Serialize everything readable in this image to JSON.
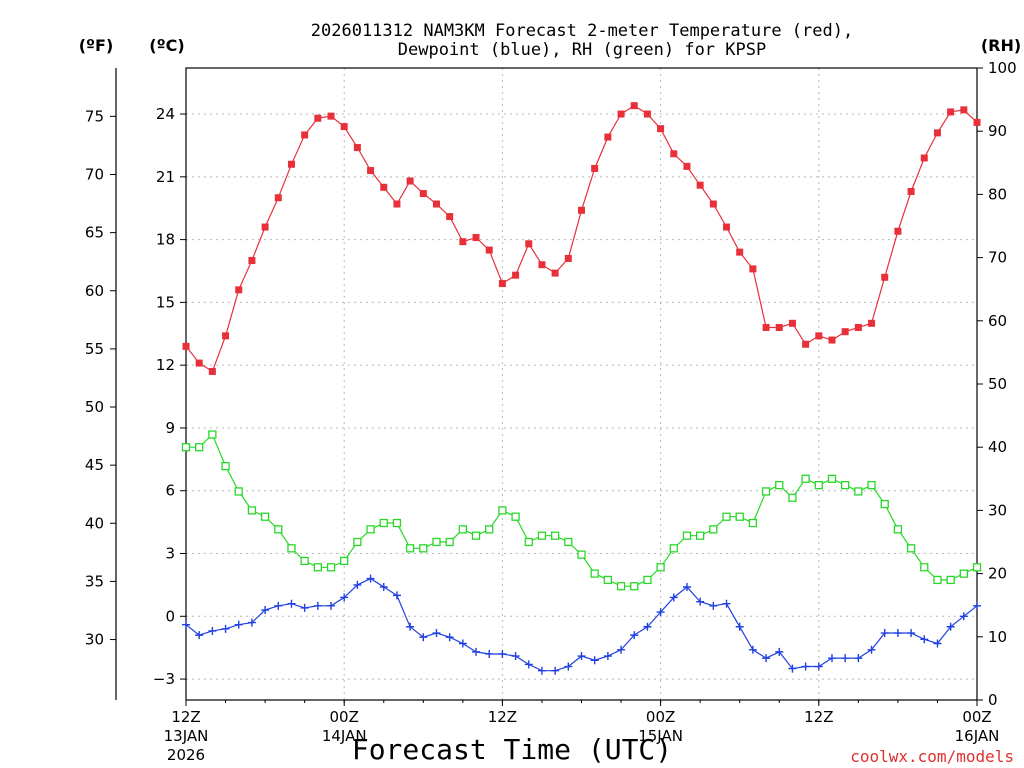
{
  "chart_data": {
    "type": "line",
    "title_line1": "2026011312 NAM3KM Forecast 2-meter Temperature (red),",
    "title_line2": "Dewpoint (blue), RH (green) for KPSP",
    "xlabel": "Forecast Time (UTC)",
    "credit": "coolwx.com/models",
    "units": {
      "fahrenheit": "(ºF)",
      "celsius": "(ºC)",
      "rh": "(RH)"
    },
    "x_range_hours": [
      0,
      60
    ],
    "celsius_range": [
      -4.0,
      26.2
    ],
    "rh_range": [
      0,
      100
    ],
    "celsius_ticks": [
      "24",
      "21",
      "18",
      "15",
      "12",
      "9",
      "6",
      "3",
      "0",
      "−3"
    ],
    "fahrenheit_ticks": [
      "75",
      "70",
      "65",
      "60",
      "55",
      "50",
      "45",
      "40",
      "35",
      "30"
    ],
    "rh_ticks": [
      "100",
      "90",
      "80",
      "70",
      "60",
      "50",
      "40",
      "30",
      "20",
      "10",
      "0"
    ],
    "x_ticks": [
      {
        "hour": 0,
        "line1": "12Z",
        "line2": "13JAN",
        "line3": "2026"
      },
      {
        "hour": 12,
        "line1": "00Z",
        "line2": "14JAN",
        "line3": ""
      },
      {
        "hour": 24,
        "line1": "12Z",
        "line2": "",
        "line3": ""
      },
      {
        "hour": 36,
        "line1": "00Z",
        "line2": "15JAN",
        "line3": ""
      },
      {
        "hour": 48,
        "line1": "12Z",
        "line2": "",
        "line3": ""
      },
      {
        "hour": 60,
        "line1": "00Z",
        "line2": "16JAN",
        "line3": ""
      }
    ],
    "series": [
      {
        "name": "2-meter Temperature",
        "color": "#e8303a",
        "marker": "filled-square",
        "axis": "celsius",
        "values": [
          12.9,
          12.1,
          11.7,
          13.4,
          15.6,
          17.0,
          18.6,
          20.0,
          21.6,
          23.0,
          23.8,
          23.9,
          23.4,
          22.4,
          21.3,
          20.5,
          19.7,
          20.8,
          20.2,
          19.7,
          19.1,
          17.9,
          18.1,
          17.5,
          15.9,
          16.3,
          17.8,
          16.8,
          16.4,
          17.1,
          19.4,
          21.4,
          22.9,
          24.0,
          24.4,
          24.0,
          23.3,
          22.1,
          21.5,
          20.6,
          19.7,
          18.6,
          17.4,
          16.6,
          13.8,
          13.8,
          14.0,
          13.0,
          13.4,
          13.2,
          13.6,
          13.8,
          14.0,
          16.2,
          18.4,
          20.3,
          21.9,
          23.1,
          24.1,
          24.2,
          23.6
        ]
      },
      {
        "name": "Dewpoint",
        "color": "#2040e0",
        "marker": "plus",
        "axis": "celsius",
        "values": [
          -0.4,
          -0.9,
          -0.7,
          -0.6,
          -0.4,
          -0.3,
          0.3,
          0.5,
          0.6,
          0.4,
          0.5,
          0.5,
          0.9,
          1.5,
          1.8,
          1.4,
          1.0,
          -0.5,
          -1.0,
          -0.8,
          -1.0,
          -1.3,
          -1.7,
          -1.8,
          -1.8,
          -1.9,
          -2.3,
          -2.6,
          -2.6,
          -2.4,
          -1.9,
          -2.1,
          -1.9,
          -1.6,
          -0.9,
          -0.5,
          0.2,
          0.9,
          1.4,
          0.7,
          0.5,
          0.6,
          -0.5,
          -1.6,
          -2.0,
          -1.7,
          -2.5,
          -2.4,
          -2.4,
          -2.0,
          -2.0,
          -2.0,
          -1.6,
          -0.8,
          -0.8,
          -0.8,
          -1.1,
          -1.3,
          -0.5,
          0.0,
          0.5
        ]
      },
      {
        "name": "RH",
        "color": "#28d828",
        "marker": "open-square",
        "axis": "rh",
        "values": [
          40,
          40,
          42,
          37,
          33,
          30,
          29,
          27,
          24,
          22,
          21,
          21,
          22,
          25,
          27,
          28,
          28,
          24,
          24,
          25,
          25,
          27,
          26,
          27,
          30,
          29,
          25,
          26,
          26,
          25,
          23,
          20,
          19,
          18,
          18,
          19,
          21,
          24,
          26,
          26,
          27,
          29,
          29,
          28,
          33,
          34,
          32,
          35,
          34,
          35,
          34,
          33,
          34,
          31,
          27,
          24,
          21,
          19,
          19,
          20,
          21
        ]
      }
    ]
  }
}
